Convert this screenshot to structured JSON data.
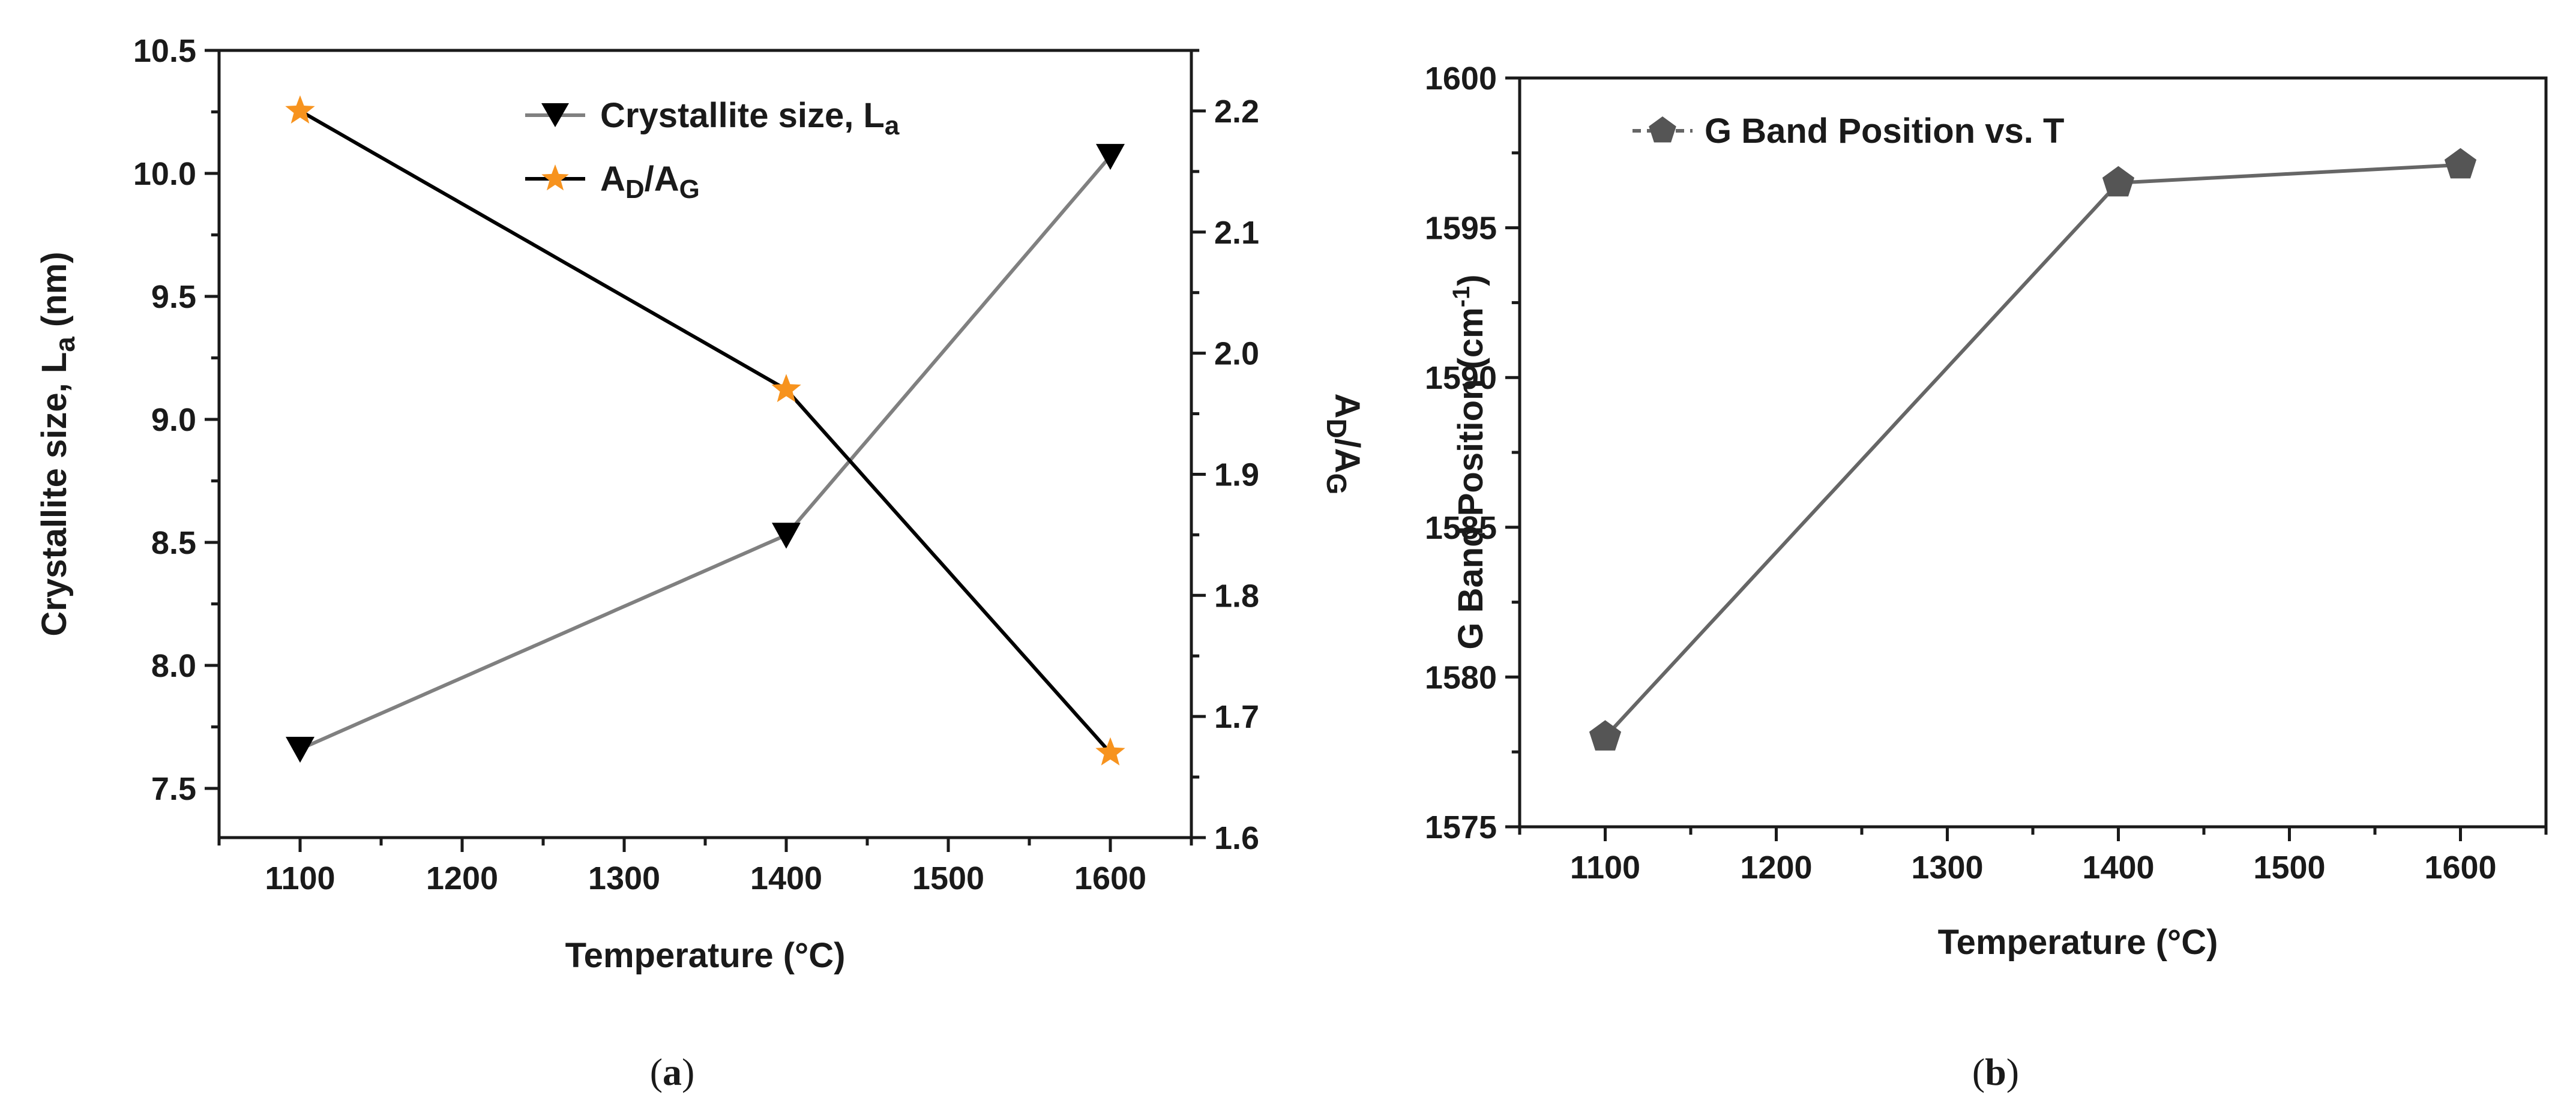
{
  "chart_data": [
    {
      "type": "line",
      "panel_label": "(a)",
      "panel_letter": "a",
      "xlabel": "Temperature (°C)",
      "xlim": [
        1050,
        1650
      ],
      "xticks": [
        1100,
        1200,
        1300,
        1400,
        1500,
        1600
      ],
      "ylabel_left": {
        "base": "Crystallite size, L",
        "sub": "a",
        "tail": " (nm)"
      },
      "ylim_left": [
        7.3,
        10.5
      ],
      "yticks_left": [
        7.5,
        8.0,
        8.5,
        9.0,
        9.5,
        10.0,
        10.5
      ],
      "ylabel_right": {
        "A": "A",
        "sub1": "D",
        "slash": "/A",
        "sub2": "G"
      },
      "ylim_right": [
        1.6,
        2.25
      ],
      "yticks_right": [
        1.6,
        1.7,
        1.8,
        1.9,
        2.0,
        2.1,
        2.2
      ],
      "series": [
        {
          "name": "Crystallite size, La",
          "legend": {
            "base": "Crystallite size, L",
            "sub": "a"
          },
          "axis": "left",
          "marker": "triangle-down",
          "color": "#000000",
          "line_color": "#808080",
          "x": [
            1100,
            1400,
            1600
          ],
          "values": [
            7.66,
            8.53,
            10.07
          ]
        },
        {
          "name": "AD/AG",
          "legend": {
            "A": "A",
            "sub1": "D",
            "slash": "/A",
            "sub2": "G"
          },
          "axis": "right",
          "marker": "star",
          "color": "#f7931e",
          "line_color": "#000000",
          "x": [
            1100,
            1400,
            1600
          ],
          "values": [
            2.2,
            1.97,
            1.67
          ]
        }
      ]
    },
    {
      "type": "line",
      "panel_label": "(b)",
      "panel_letter": "b",
      "xlabel": "Temperature (°C)",
      "xlim": [
        1050,
        1650
      ],
      "xticks": [
        1100,
        1200,
        1300,
        1400,
        1500,
        1600
      ],
      "ylabel": {
        "base": "G Band Position (cm",
        "sup": "-1",
        "tail": ")"
      },
      "ylim": [
        1575,
        1600
      ],
      "yticks": [
        1575,
        1580,
        1585,
        1590,
        1595,
        1600
      ],
      "series": [
        {
          "name": "G Band Position vs. T",
          "marker": "pentagon",
          "color": "#555555",
          "line_color": "#666666",
          "x": [
            1100,
            1400,
            1600
          ],
          "values": [
            1578,
            1596.5,
            1597.1
          ]
        }
      ]
    }
  ]
}
